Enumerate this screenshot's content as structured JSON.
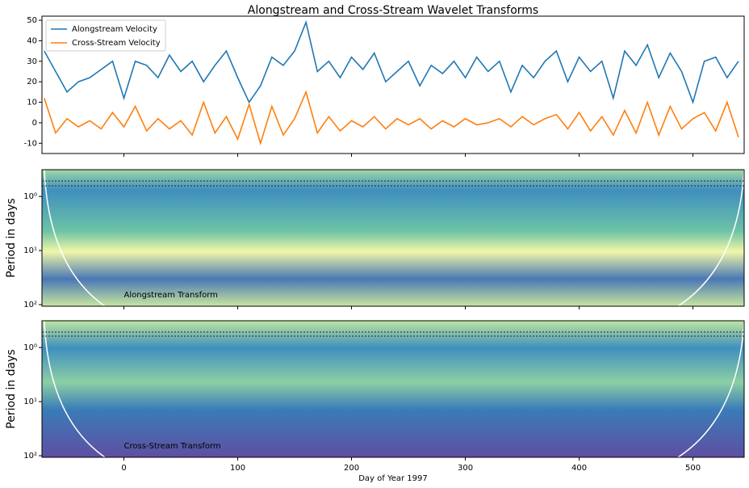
{
  "chart_data": [
    {
      "type": "line",
      "title": "Alongstream and Cross-Stream Wavelet Transforms",
      "x": [
        -70,
        -60,
        -50,
        -40,
        -30,
        -20,
        -10,
        0,
        10,
        20,
        30,
        40,
        50,
        60,
        70,
        80,
        90,
        100,
        110,
        120,
        130,
        140,
        150,
        160,
        170,
        180,
        190,
        200,
        210,
        220,
        230,
        240,
        250,
        260,
        270,
        280,
        290,
        300,
        310,
        320,
        330,
        340,
        350,
        360,
        370,
        380,
        390,
        400,
        410,
        420,
        430,
        440,
        450,
        460,
        470,
        480,
        490,
        500,
        510,
        520,
        530,
        540
      ],
      "series": [
        {
          "name": "Alongstream Velocity",
          "color": "#1f77b4",
          "values": [
            35,
            25,
            15,
            20,
            22,
            26,
            30,
            12,
            30,
            28,
            22,
            33,
            25,
            30,
            20,
            28,
            35,
            22,
            10,
            18,
            32,
            28,
            35,
            49,
            25,
            30,
            22,
            32,
            26,
            34,
            20,
            25,
            30,
            18,
            28,
            24,
            30,
            22,
            32,
            25,
            30,
            15,
            28,
            22,
            30,
            35,
            20,
            32,
            25,
            30,
            12,
            35,
            28,
            38,
            22,
            34,
            25,
            10,
            30,
            32,
            22,
            30
          ]
        },
        {
          "name": "Cross-Stream Velocity",
          "color": "#ff7f0e",
          "values": [
            12,
            -5,
            2,
            -2,
            1,
            -3,
            5,
            -2,
            8,
            -4,
            2,
            -3,
            1,
            -6,
            10,
            -5,
            3,
            -8,
            9,
            -10,
            8,
            -6,
            2,
            15,
            -5,
            3,
            -4,
            1,
            -2,
            3,
            -3,
            2,
            -1,
            2,
            -3,
            1,
            -2,
            2,
            -1,
            0,
            2,
            -2,
            3,
            -1,
            2,
            4,
            -3,
            5,
            -4,
            3,
            -6,
            6,
            -5,
            10,
            -6,
            8,
            -3,
            2,
            5,
            -4,
            10,
            -7
          ]
        }
      ],
      "xlim": [
        -72,
        545
      ],
      "xticks": [
        0,
        100,
        200,
        300,
        400,
        500
      ],
      "ylim": [
        -15,
        52
      ],
      "yticks": [
        -10,
        0,
        10,
        20,
        30,
        40,
        50
      ],
      "legend": "upper-left"
    },
    {
      "type": "wavelet",
      "ylabel": "Period in days",
      "annotation": "Alongstream Transform",
      "xlim": [
        -72,
        545
      ],
      "xticks": [
        0,
        100,
        200,
        300,
        400,
        500
      ],
      "ylim": [
        0.32,
        107
      ],
      "log_y": true,
      "y_inverted": true,
      "yticks": [
        {
          "value": 1,
          "label": "10⁰"
        },
        {
          "value": 10,
          "label": "10¹"
        },
        {
          "value": 100,
          "label": "10²"
        }
      ]
    },
    {
      "type": "wavelet",
      "ylabel": "Period in days",
      "annotation": "Cross-Stream Transform",
      "xlabel": "Day of Year 1997",
      "xlim": [
        -72,
        545
      ],
      "xticks": [
        0,
        100,
        200,
        300,
        400,
        500
      ],
      "ylim": [
        0.32,
        107
      ],
      "log_y": true,
      "y_inverted": true,
      "yticks": [
        {
          "value": 1,
          "label": "10⁰"
        },
        {
          "value": 10,
          "label": "10¹"
        },
        {
          "value": 100,
          "label": "10²"
        }
      ]
    }
  ]
}
